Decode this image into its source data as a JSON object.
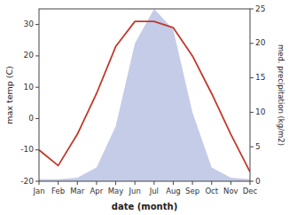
{
  "chart_data": {
    "type": "line",
    "xlabel": "date (month)",
    "ylabel": "max temp (C)",
    "y2label": "med. precipitation (kg/m2)",
    "categories": [
      "Jan",
      "Feb",
      "Mar",
      "Apr",
      "May",
      "Jun",
      "Jul",
      "Aug",
      "Sep",
      "Oct",
      "Nov",
      "Dec"
    ],
    "series": [
      {
        "type": "line",
        "color": "#c0392b",
        "values": [
          -10,
          -15,
          -5,
          8,
          23,
          31,
          31,
          29,
          20,
          8,
          -5,
          -17
        ]
      },
      {
        "type": "area",
        "axis": "y2",
        "color": "#c5cce8",
        "values": [
          0.3,
          0.3,
          0.5,
          2,
          8,
          20,
          25,
          22,
          10,
          2,
          0.5,
          0.3
        ]
      }
    ],
    "ylim": [
      -20,
      35
    ],
    "yticks": [
      -20,
      -10,
      0,
      10,
      20,
      30
    ],
    "y2lim": [
      0,
      25
    ],
    "y2ticks": [
      0,
      5,
      10,
      15,
      20,
      25
    ],
    "grid": false
  }
}
